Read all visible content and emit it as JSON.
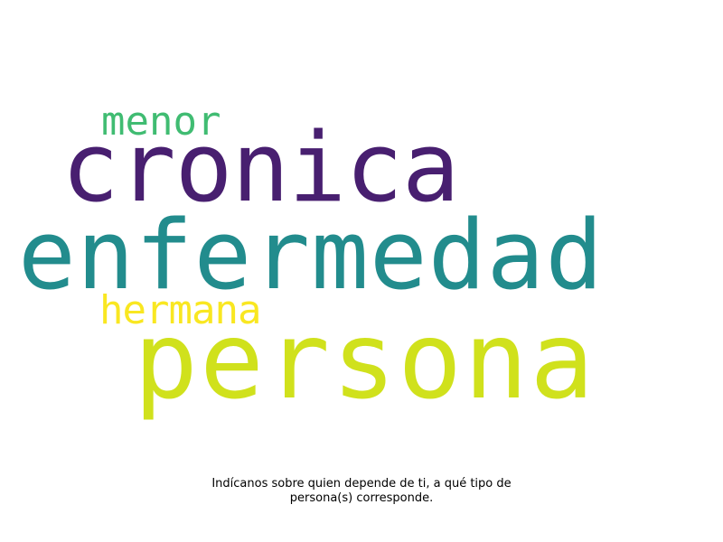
{
  "word_cloud": {
    "words": [
      {
        "text": "cronica",
        "color": "#481f70"
      },
      {
        "text": "enfermedad",
        "color": "#228c8d"
      },
      {
        "text": "persona",
        "color": "#d0e11c"
      },
      {
        "text": "menor",
        "color": "#40bc72"
      },
      {
        "text": "hermana",
        "color": "#f9e721"
      }
    ]
  },
  "caption": {
    "line1": "Indícanos sobre quien depende de ti, a qué tipo de",
    "line2": "persona(s) corresponde."
  }
}
